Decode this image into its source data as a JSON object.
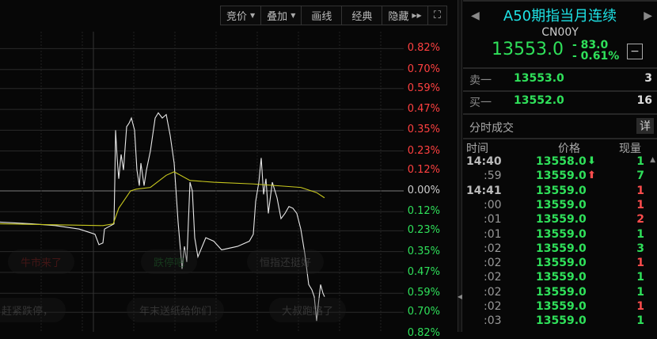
{
  "toolbar": {
    "items": [
      {
        "label": "竞价",
        "dropdown": true
      },
      {
        "label": "叠加",
        "dropdown": true
      },
      {
        "label": "画线"
      },
      {
        "label": "经典"
      },
      {
        "label": "隐藏",
        "expand": true
      }
    ],
    "fullscreen_icon": "expand-icon"
  },
  "chart_data": {
    "type": "line",
    "y_unit": "%",
    "yticks_up": [
      "0.82%",
      "0.70%",
      "0.59%",
      "0.47%",
      "0.35%",
      "0.23%",
      "0.12%"
    ],
    "ytick_zero": "0.00%",
    "yticks_down": [
      "0.12%",
      "0.23%",
      "0.35%",
      "0.47%",
      "0.59%",
      "0.70%",
      "0.82%"
    ],
    "ylim": [
      -0.82,
      0.82
    ],
    "grid": true,
    "colors": {
      "price": "#e8e8e8",
      "average": "#c8c81e",
      "up": "#ff4040",
      "down": "#2fe05a",
      "zero": "#cccccc"
    },
    "series": [
      {
        "key": "price",
        "points": [
          [
            0,
            -0.18
          ],
          [
            40,
            -0.19
          ],
          [
            70,
            -0.2
          ],
          [
            100,
            -0.22
          ],
          [
            120,
            -0.25
          ],
          [
            125,
            -0.31
          ],
          [
            130,
            -0.3
          ],
          [
            132,
            -0.22
          ],
          [
            140,
            -0.2
          ],
          [
            144,
            -0.19
          ],
          [
            145,
            0.05
          ],
          [
            146,
            0.35
          ],
          [
            148,
            0.19
          ],
          [
            150,
            0.07
          ],
          [
            153,
            0.21
          ],
          [
            156,
            0.12
          ],
          [
            160,
            0.37
          ],
          [
            163,
            0.39
          ],
          [
            166,
            0.42
          ],
          [
            170,
            0.35
          ],
          [
            173,
            0.12
          ],
          [
            176,
            0.03
          ],
          [
            178,
            0.16
          ],
          [
            182,
            0.03
          ],
          [
            185,
            0.12
          ],
          [
            190,
            0.23
          ],
          [
            196,
            0.42
          ],
          [
            200,
            0.45
          ],
          [
            205,
            0.42
          ],
          [
            210,
            0.44
          ],
          [
            215,
            0.32
          ],
          [
            220,
            0.16
          ],
          [
            225,
            -0.18
          ],
          [
            230,
            -0.45
          ],
          [
            233,
            -0.32
          ],
          [
            236,
            -0.41
          ],
          [
            240,
            0.05
          ],
          [
            243,
            0.0
          ],
          [
            246,
            -0.27
          ],
          [
            250,
            -0.38
          ],
          [
            260,
            -0.27
          ],
          [
            270,
            -0.29
          ],
          [
            280,
            -0.34
          ],
          [
            300,
            -0.32
          ],
          [
            315,
            -0.29
          ],
          [
            320,
            -0.25
          ],
          [
            323,
            -0.06
          ],
          [
            327,
            0.05
          ],
          [
            330,
            0.19
          ],
          [
            333,
            -0.02
          ],
          [
            336,
            0.07
          ],
          [
            339,
            -0.13
          ],
          [
            344,
            0.05
          ],
          [
            350,
            -0.04
          ],
          [
            355,
            -0.16
          ],
          [
            360,
            -0.13
          ],
          [
            365,
            -0.09
          ],
          [
            370,
            -0.1
          ],
          [
            375,
            -0.13
          ],
          [
            380,
            -0.22
          ],
          [
            385,
            -0.36
          ],
          [
            390,
            -0.54
          ],
          [
            394,
            -0.57
          ],
          [
            397,
            -0.61
          ],
          [
            400,
            -0.75
          ],
          [
            402,
            -0.66
          ],
          [
            405,
            -0.54
          ],
          [
            408,
            -0.59
          ],
          [
            410,
            -0.61
          ]
        ]
      },
      {
        "key": "average",
        "points": [
          [
            0,
            -0.19
          ],
          [
            130,
            -0.2
          ],
          [
            143,
            -0.19
          ],
          [
            150,
            -0.1
          ],
          [
            165,
            0.0
          ],
          [
            172,
            0.01
          ],
          [
            190,
            0.02
          ],
          [
            210,
            0.09
          ],
          [
            220,
            0.11
          ],
          [
            240,
            0.06
          ],
          [
            270,
            0.05
          ],
          [
            320,
            0.04
          ],
          [
            380,
            0.02
          ],
          [
            400,
            -0.01
          ],
          [
            410,
            -0.04
          ]
        ]
      }
    ]
  },
  "danmaku": [
    "牛市来了",
    "跌停吧",
    "恒指还挺好",
    "赶紧跌停，",
    "年末送纸给你们",
    "大叔跑路了"
  ],
  "quote": {
    "title": "A50期指当月连续",
    "code": "CN00Y",
    "price": "13553.0",
    "change": "- 83.0",
    "change_pct": "- 0.61%",
    "minus_label": "−",
    "price_color": "#2fe05a",
    "title_color": "#1ee3e6"
  },
  "orderbook": [
    {
      "label": "卖一",
      "price": "13553.0",
      "volume": "3"
    },
    {
      "label": "买一",
      "price": "13552.0",
      "volume": "16"
    }
  ],
  "ticks": {
    "section_title": "分时成交",
    "detail_button": "详",
    "headers": {
      "time": "时间",
      "price": "价格",
      "volume": "现量"
    },
    "rows": [
      {
        "time": "14:40",
        "main": true,
        "price": "13558.0",
        "arrow": "down",
        "volume": "1",
        "vcolor": "#2fe05a"
      },
      {
        "time": ":59",
        "price": "13559.0",
        "arrow": "up",
        "volume": "7",
        "vcolor": "#2fe05a"
      },
      {
        "time": "14:41",
        "main": true,
        "price": "13559.0",
        "volume": "1",
        "vcolor": "#ff4d4d"
      },
      {
        "time": ":00",
        "price": "13559.0",
        "volume": "1",
        "vcolor": "#ff4d4d"
      },
      {
        "time": ":01",
        "price": "13559.0",
        "volume": "2",
        "vcolor": "#ff4d4d"
      },
      {
        "time": ":01",
        "price": "13559.0",
        "volume": "1",
        "vcolor": "#2fe05a"
      },
      {
        "time": ":02",
        "price": "13559.0",
        "volume": "3",
        "vcolor": "#2fe05a"
      },
      {
        "time": ":02",
        "price": "13559.0",
        "volume": "1",
        "vcolor": "#ff4d4d"
      },
      {
        "time": ":02",
        "price": "13559.0",
        "volume": "1",
        "vcolor": "#2fe05a"
      },
      {
        "time": ":02",
        "price": "13559.0",
        "volume": "1",
        "vcolor": "#2fe05a"
      },
      {
        "time": ":02",
        "price": "13559.0",
        "volume": "1",
        "vcolor": "#ff4d4d"
      },
      {
        "time": ":03",
        "price": "13559.0",
        "volume": "1",
        "vcolor": "#2fe05a"
      }
    ]
  }
}
